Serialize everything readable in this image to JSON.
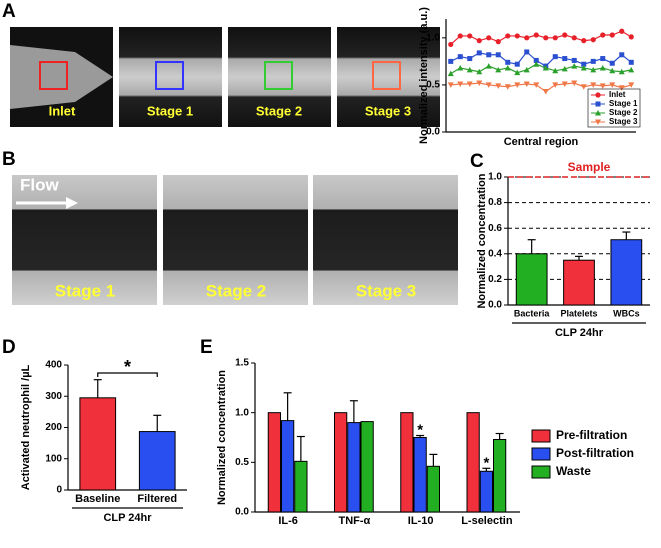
{
  "panels": [
    "A",
    "B",
    "C",
    "D",
    "E"
  ],
  "images_a": [
    "Inlet",
    "Stage 1",
    "Stage 2",
    "Stage 3"
  ],
  "images_b": {
    "flow": "Flow",
    "stages": [
      "Stage 1",
      "Stage 2",
      "Stage 3"
    ]
  },
  "chart_data": [
    {
      "type": "line",
      "ylabel": "Normalized intensity (a.u.)",
      "xlabel": "Central region",
      "categories": [
        null,
        null,
        null,
        null,
        null,
        null,
        null,
        null,
        null,
        null,
        null,
        null,
        null,
        null,
        null,
        null,
        null,
        null,
        null,
        null
      ],
      "series": [
        {
          "name": "Inlet",
          "color": "#e8202a",
          "marker": "circle",
          "values": [
            0.93,
            1.02,
            1.02,
            0.97,
            1.0,
            0.96,
            1.02,
            1.02,
            1.0,
            1.03,
            1.0,
            1.0,
            1.03,
            1.0,
            0.97,
            0.98,
            1.03,
            1.03,
            1.07,
            1.01
          ]
        },
        {
          "name": "Stage 1",
          "color": "#2a4fd0",
          "marker": "square",
          "values": [
            0.75,
            0.8,
            0.78,
            0.84,
            0.82,
            0.82,
            0.74,
            0.72,
            0.85,
            0.76,
            0.7,
            0.8,
            0.78,
            0.76,
            0.72,
            0.75,
            0.78,
            0.73,
            0.82,
            0.74
          ]
        },
        {
          "name": "Stage 2",
          "color": "#2ca02c",
          "marker": "triangle",
          "values": [
            0.62,
            0.68,
            0.66,
            0.64,
            0.7,
            0.66,
            0.68,
            0.63,
            0.66,
            0.72,
            0.68,
            0.65,
            0.67,
            0.7,
            0.68,
            0.66,
            0.68,
            0.65,
            0.64,
            0.66
          ]
        },
        {
          "name": "Stage 3",
          "color": "#f07848",
          "marker": "triangle-down",
          "values": [
            0.5,
            0.51,
            0.51,
            0.52,
            0.5,
            0.49,
            0.48,
            0.5,
            0.51,
            0.5,
            0.43,
            0.5,
            0.51,
            0.52,
            0.48,
            0.5,
            0.49,
            0.5,
            0.47,
            0.5
          ]
        }
      ],
      "ylim": [
        0,
        1.2
      ],
      "yticks": [
        {
          "value": 0,
          "label": "0.0"
        },
        {
          "value": 0.5,
          "label": "0.5"
        },
        {
          "value": 1,
          "label": "1.0"
        }
      ]
    },
    {
      "type": "bar",
      "ylabel": "Normalized concentration",
      "xlabel": "CLP 24hr",
      "annotations": [
        "Sample"
      ],
      "categories": [
        "Bacteria",
        "Platelets",
        "WBCs"
      ],
      "values": [
        0.4,
        0.35,
        0.51
      ],
      "errors": [
        0.11,
        0.03,
        0.06
      ],
      "colors": [
        "#22b022",
        "#f0303a",
        "#2a4ff0"
      ],
      "ylim": [
        0,
        1
      ],
      "grid": true,
      "yticks": [
        {
          "value": 0,
          "label": "0.0"
        },
        {
          "value": 0.2,
          "label": "0.2"
        },
        {
          "value": 0.4,
          "label": "0.4"
        },
        {
          "value": 0.6,
          "label": "0.6"
        },
        {
          "value": 0.8,
          "label": "0.8"
        },
        {
          "value": 1,
          "label": "1.0"
        }
      ]
    },
    {
      "type": "bar",
      "ylabel": "Activated neutrophil /µL",
      "xlabel": "CLP 24hr",
      "annotations": [
        "*"
      ],
      "categories": [
        "Baseline",
        "Filtered"
      ],
      "values": [
        295,
        187
      ],
      "errors": [
        58,
        52
      ],
      "colors": [
        "#f0303a",
        "#2a4ff0"
      ],
      "ylim": [
        0,
        400
      ],
      "yticks": [
        0,
        100,
        200,
        300,
        400
      ]
    },
    {
      "type": "bar",
      "ylabel": "Normalized concentration",
      "annotations": [
        "*",
        "*"
      ],
      "categories": [
        "IL-6",
        "TNF-α",
        "IL-10",
        "L-selectin"
      ],
      "series": [
        {
          "name": "Pre-filtration",
          "color": "#f0303a",
          "values": [
            1,
            1,
            1,
            1
          ],
          "errors": [
            0,
            0,
            0,
            0
          ]
        },
        {
          "name": "Post-filtration",
          "color": "#2a4ff0",
          "values": [
            0.92,
            0.9,
            0.75,
            0.41
          ],
          "errors": [
            0.28,
            0.22,
            0.02,
            0.03
          ]
        },
        {
          "name": "Waste",
          "color": "#22b022",
          "values": [
            0.51,
            0.91,
            0.46,
            0.73
          ],
          "errors": [
            0.25,
            0,
            0.12,
            0.06
          ]
        }
      ],
      "ylim": [
        0,
        1.5
      ],
      "yticks": [
        {
          "value": 0,
          "label": "0.0"
        },
        {
          "value": 0.5,
          "label": "0.5"
        },
        {
          "value": 1,
          "label": "1.0"
        },
        {
          "value": 1.5,
          "label": "1.5"
        }
      ]
    }
  ]
}
